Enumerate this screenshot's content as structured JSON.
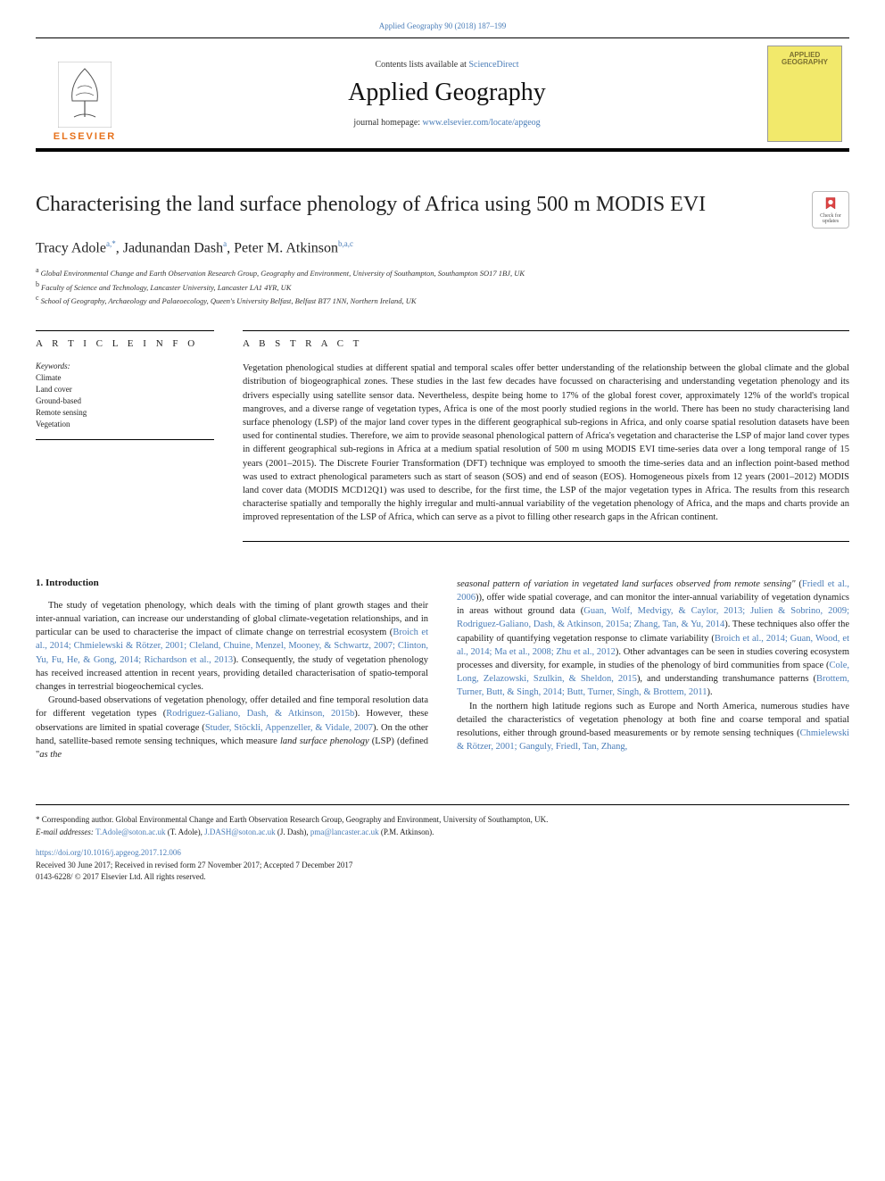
{
  "header": {
    "journal_ref": "Applied Geography 90 (2018) 187–199",
    "contents_prefix": "Contents lists available at ",
    "contents_link": "ScienceDirect",
    "journal_name": "Applied Geography",
    "homepage_prefix": "journal homepage: ",
    "homepage_link": "www.elsevier.com/locate/apgeog",
    "publisher_word": "ELSEVIER",
    "cover_line1": "APPLIED",
    "cover_line2": "GEOGRAPHY",
    "check_updates_label": "Check for updates"
  },
  "article": {
    "title": "Characterising the land surface phenology of Africa using 500 m MODIS EVI",
    "authors_html": "Tracy Adole",
    "authors": [
      {
        "name": "Tracy Adole",
        "sup": "a,*"
      },
      {
        "name": "Jadunandan Dash",
        "sup": "a"
      },
      {
        "name": "Peter M. Atkinson",
        "sup": "b,a,c"
      }
    ],
    "sep": ", ",
    "affiliations": [
      {
        "sup": "a",
        "text": "Global Environmental Change and Earth Observation Research Group, Geography and Environment, University of Southampton, Southampton SO17 1BJ, UK"
      },
      {
        "sup": "b",
        "text": "Faculty of Science and Technology, Lancaster University, Lancaster LA1 4YR, UK"
      },
      {
        "sup": "c",
        "text": "School of Geography, Archaeology and Palaeoecology, Queen's University Belfast, Belfast BT7 1NN, Northern Ireland, UK"
      }
    ]
  },
  "info": {
    "heading": "A R T I C L E  I N F O",
    "kw_label": "Keywords:",
    "keywords": [
      "Climate",
      "Land cover",
      "Ground-based",
      "Remote sensing",
      "Vegetation"
    ]
  },
  "abstract": {
    "heading": "A B S T R A C T",
    "text": "Vegetation phenological studies at different spatial and temporal scales offer better understanding of the relationship between the global climate and the global distribution of biogeographical zones. These studies in the last few decades have focussed on characterising and understanding vegetation phenology and its drivers especially using satellite sensor data. Nevertheless, despite being home to 17% of the global forest cover, approximately 12% of the world's tropical mangroves, and a diverse range of vegetation types, Africa is one of the most poorly studied regions in the world. There has been no study characterising land surface phenology (LSP) of the major land cover types in the different geographical sub-regions in Africa, and only coarse spatial resolution datasets have been used for continental studies. Therefore, we aim to provide seasonal phenological pattern of Africa's vegetation and characterise the LSP of major land cover types in different geographical sub-regions in Africa at a medium spatial resolution of 500 m using MODIS EVI time-series data over a long temporal range of 15 years (2001–2015). The Discrete Fourier Transformation (DFT) technique was employed to smooth the time-series data and an inflection point-based method was used to extract phenological parameters such as start of season (SOS) and end of season (EOS). Homogeneous pixels from 12 years (2001–2012) MODIS land cover data (MODIS MCD12Q1) was used to describe, for the first time, the LSP of the major vegetation types in Africa. The results from this research characterise spatially and temporally the highly irregular and multi-annual variability of the vegetation phenology of Africa, and the maps and charts provide an improved representation of the LSP of Africa, which can serve as a pivot to filling other research gaps in the African continent."
  },
  "body": {
    "section_heading": "1. Introduction",
    "col1": {
      "p1a": "The study of vegetation phenology, which deals with the timing of plant growth stages and their inter-annual variation, can increase our understanding of global climate-vegetation relationships, and in particular can be used to characterise the impact of climate change on terrestrial ecosystem (",
      "p1_ref1": "Broich et al., 2014; Chmielewski & Rötzer, 2001; Cleland, Chuine, Menzel, Mooney, & Schwartz, 2007; Clinton, Yu, Fu, He, & Gong, 2014; Richardson et al., 2013",
      "p1b": "). Consequently, the study of vegetation phenology has received increased attention in recent years, providing detailed characterisation of spatio-temporal changes in terrestrial biogeochemical cycles.",
      "p2a": "Ground-based observations of vegetation phenology, offer detailed and fine temporal resolution data for different vegetation types (",
      "p2_ref1": "Rodriguez-Galiano, Dash, & Atkinson, 2015b",
      "p2b": "). However, these observations are limited in spatial coverage (",
      "p2_ref2": "Studer, Stöckli, Appenzeller, & Vidale, 2007",
      "p2c": "). On the other hand, satellite-based remote sensing techniques, which measure ",
      "p2_em1": "land surface phenology",
      "p2d": " (LSP) (defined \"",
      "p2_em2": "as the"
    },
    "col2": {
      "p1_em1": "seasonal pattern of variation in vegetated land surfaces observed from remote sensing\"",
      "p1a": " (",
      "p1_ref1": "Friedl et al., 2006",
      "p1b": ")), offer wide spatial coverage, and can monitor the inter-annual variability of vegetation dynamics in areas without ground data (",
      "p1_ref2": "Guan, Wolf, Medvigy, & Caylor, 2013; Julien & Sobrino, 2009; Rodriguez-Galiano, Dash, & Atkinson, 2015a; Zhang, Tan, & Yu, 2014",
      "p1c": "). These techniques also offer the capability of quantifying vegetation response to climate variability (",
      "p1_ref3": "Broich et al., 2014; Guan, Wood, et al., 2014; Ma et al., 2008; Zhu et al., 2012",
      "p1d": "). Other advantages can be seen in studies covering ecosystem processes and diversity, for example, in studies of the phenology of bird communities from space (",
      "p1_ref4": "Cole, Long, Zelazowski, Szulkin, & Sheldon, 2015",
      "p1e": "), and understanding transhumance patterns (",
      "p1_ref5": "Brottem, Turner, Butt, & Singh, 2014; Butt, Turner, Singh, & Brottem, 2011",
      "p1f": ").",
      "p2a": "In the northern high latitude regions such as Europe and North America, numerous studies have detailed the characteristics of vegetation phenology at both fine and coarse temporal and spatial resolutions, either through ground-based measurements or by remote sensing techniques (",
      "p2_ref1": "Chmielewski & Rötzer, 2001; Ganguly, Friedl, Tan, Zhang,"
    }
  },
  "footer": {
    "corr_text": "* Corresponding author. Global Environmental Change and Earth Observation Research Group, Geography and Environment, University of Southampton, UK.",
    "emails_label": "E-mail addresses: ",
    "emails": [
      {
        "addr": "T.Adole@soton.ac.uk",
        "who": " (T. Adole), "
      },
      {
        "addr": "J.DASH@soton.ac.uk",
        "who": " (J. Dash), "
      },
      {
        "addr": "pma@lancaster.ac.uk",
        "who": " (P.M. Atkinson)."
      }
    ],
    "doi": "https://doi.org/10.1016/j.apgeog.2017.12.006",
    "dates": "Received 30 June 2017; Received in revised form 27 November 2017; Accepted 7 December 2017",
    "copyright": "0143-6228/ © 2017 Elsevier Ltd. All rights reserved."
  },
  "colors": {
    "link": "#4a7db8",
    "elsevier_orange": "#e6711b",
    "cover_bg": "#f2e96b",
    "cover_text": "#7a7030",
    "rule": "#000000"
  }
}
